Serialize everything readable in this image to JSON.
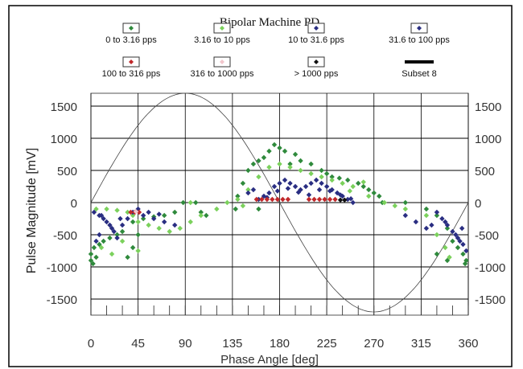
{
  "chart_data": {
    "type": "scatter",
    "title": "Bipolar Machine PD",
    "xlabel": "Phase Angle [deg]",
    "ylabel": "Pulse Magnitude [mV]",
    "xlim": [
      0,
      360
    ],
    "ylim": [
      -1750,
      1700
    ],
    "x_ticks": [
      0,
      45,
      90,
      135,
      180,
      225,
      270,
      315,
      360
    ],
    "x_tick_labels": [
      "0",
      "45",
      "90",
      "135",
      "180",
      "225",
      "270",
      "315",
      "360"
    ],
    "y_ticks": [
      1500,
      1000,
      500,
      0,
      -500,
      -1000,
      -1500
    ],
    "y_tick_labels_left": [
      "1500",
      "1000",
      "500",
      "0",
      "-500",
      "-1000",
      "-1500"
    ],
    "y_tick_labels_right": [
      "1500",
      "1000",
      "500",
      "0",
      "-500",
      "-1000",
      "-1500"
    ],
    "grid": true,
    "legend_position": "top",
    "reference_curve": {
      "type": "sine",
      "amplitude": 1700,
      "period_deg": 360
    },
    "legend": [
      {
        "label": "0 to 3.16 pps",
        "color": "#2f8a3c",
        "marker": "diamond"
      },
      {
        "label": "3.16 to 10 pps",
        "color": "#7bd15c",
        "marker": "diamond"
      },
      {
        "label": "10 to 31.6 pps",
        "color": "#2a2e82",
        "marker": "diamond"
      },
      {
        "label": "31.6 to 100 pps",
        "color": "#2a2e82",
        "marker": "diamond"
      },
      {
        "label": "100 to 316 pps",
        "color": "#c0282a",
        "marker": "diamond"
      },
      {
        "label": "316 to 1000 pps",
        "color": "#f2c6cc",
        "marker": "diamond"
      },
      {
        "label": "> 1000 pps",
        "color": "#111111",
        "marker": "diamond"
      },
      {
        "label": "Subset 8",
        "color": "#000000",
        "marker": "line"
      }
    ],
    "series": [
      {
        "name": "0 to 3.16 pps",
        "points": [
          [
            0,
            -900
          ],
          [
            2,
            -950
          ],
          [
            5,
            -850
          ],
          [
            0,
            -800
          ],
          [
            3,
            -700
          ],
          [
            8,
            -650
          ],
          [
            12,
            -600
          ],
          [
            18,
            -550
          ],
          [
            25,
            -500
          ],
          [
            30,
            -450
          ],
          [
            40,
            -300
          ],
          [
            50,
            -250
          ],
          [
            60,
            -220
          ],
          [
            70,
            -200
          ],
          [
            80,
            -150
          ],
          [
            88,
            0
          ],
          [
            100,
            0
          ],
          [
            105,
            -150
          ],
          [
            110,
            -200
          ],
          [
            138,
            -100
          ],
          [
            140,
            100
          ],
          [
            145,
            300
          ],
          [
            150,
            500
          ],
          [
            155,
            600
          ],
          [
            160,
            650
          ],
          [
            165,
            700
          ],
          [
            170,
            800
          ],
          [
            175,
            900
          ],
          [
            180,
            850
          ],
          [
            185,
            800
          ],
          [
            195,
            750
          ],
          [
            200,
            650
          ],
          [
            210,
            600
          ],
          [
            220,
            500
          ],
          [
            225,
            450
          ],
          [
            230,
            400
          ],
          [
            237,
            380
          ],
          [
            245,
            350
          ],
          [
            255,
            300
          ],
          [
            260,
            250
          ],
          [
            265,
            200
          ],
          [
            270,
            150
          ],
          [
            275,
            100
          ],
          [
            278,
            0
          ],
          [
            300,
            0
          ],
          [
            320,
            -100
          ],
          [
            330,
            -200
          ],
          [
            340,
            -400
          ],
          [
            345,
            -600
          ],
          [
            350,
            -700
          ],
          [
            355,
            -800
          ],
          [
            358,
            -900
          ],
          [
            357,
            -950
          ],
          [
            35,
            -850
          ],
          [
            40,
            -700
          ],
          [
            45,
            -500
          ],
          [
            330,
            -800
          ],
          [
            340,
            -900
          ],
          [
            190,
            600
          ],
          [
            160,
            -100
          ]
        ]
      },
      {
        "name": "3.16 to 10 pps",
        "points": [
          [
            5,
            -100
          ],
          [
            15,
            -100
          ],
          [
            25,
            -120
          ],
          [
            35,
            -150
          ],
          [
            40,
            -200
          ],
          [
            45,
            -300
          ],
          [
            55,
            -350
          ],
          [
            65,
            -400
          ],
          [
            75,
            -450
          ],
          [
            85,
            -400
          ],
          [
            95,
            -300
          ],
          [
            105,
            -200
          ],
          [
            120,
            -100
          ],
          [
            130,
            0
          ],
          [
            140,
            50
          ],
          [
            150,
            200
          ],
          [
            160,
            400
          ],
          [
            170,
            550
          ],
          [
            180,
            600
          ],
          [
            190,
            550
          ],
          [
            200,
            500
          ],
          [
            210,
            450
          ],
          [
            220,
            400
          ],
          [
            230,
            350
          ],
          [
            240,
            300
          ],
          [
            250,
            250
          ],
          [
            265,
            100
          ],
          [
            280,
            0
          ],
          [
            290,
            -50
          ],
          [
            300,
            -100
          ],
          [
            320,
            -200
          ],
          [
            330,
            -500
          ],
          [
            338,
            -700
          ],
          [
            342,
            -850
          ],
          [
            10,
            -700
          ],
          [
            20,
            -800
          ],
          [
            30,
            -600
          ],
          [
            45,
            -750
          ],
          [
            95,
            0
          ],
          [
            145,
            -50
          ],
          [
            247,
            180
          ],
          [
            260,
            320
          ]
        ]
      },
      {
        "name": "10 to 31.6 pps",
        "points": [
          [
            3,
            -150
          ],
          [
            10,
            -200
          ],
          [
            15,
            -300
          ],
          [
            20,
            -400
          ],
          [
            25,
            -550
          ],
          [
            30,
            -350
          ],
          [
            35,
            -250
          ],
          [
            40,
            -150
          ],
          [
            50,
            -200
          ],
          [
            60,
            -250
          ],
          [
            70,
            -300
          ],
          [
            80,
            -350
          ],
          [
            5,
            -600
          ],
          [
            8,
            -500
          ],
          [
            160,
            50
          ],
          [
            165,
            100
          ],
          [
            170,
            150
          ],
          [
            175,
            250
          ],
          [
            180,
            300
          ],
          [
            185,
            350
          ],
          [
            190,
            300
          ],
          [
            195,
            250
          ],
          [
            200,
            200
          ],
          [
            205,
            250
          ],
          [
            210,
            300
          ],
          [
            215,
            350
          ],
          [
            220,
            300
          ],
          [
            225,
            250
          ],
          [
            230,
            200
          ],
          [
            235,
            150
          ],
          [
            240,
            100
          ],
          [
            245,
            50
          ],
          [
            250,
            0
          ],
          [
            330,
            -150
          ],
          [
            335,
            -250
          ],
          [
            340,
            -350
          ],
          [
            345,
            -450
          ],
          [
            350,
            -550
          ],
          [
            355,
            -650
          ],
          [
            358,
            -750
          ],
          [
            300,
            -200
          ],
          [
            310,
            -300
          ],
          [
            320,
            -400
          ],
          [
            150,
            150
          ],
          [
            155,
            200
          ]
        ]
      },
      {
        "name": "31.6 to 100 pps",
        "points": [
          [
            8,
            -200
          ],
          [
            12,
            -250
          ],
          [
            18,
            -350
          ],
          [
            22,
            -450
          ],
          [
            28,
            -250
          ],
          [
            45,
            -100
          ],
          [
            55,
            -150
          ],
          [
            65,
            -180
          ],
          [
            168,
            80
          ],
          [
            178,
            180
          ],
          [
            188,
            220
          ],
          [
            198,
            160
          ],
          [
            208,
            120
          ],
          [
            218,
            200
          ],
          [
            228,
            180
          ],
          [
            238,
            120
          ],
          [
            248,
            60
          ],
          [
            338,
            -300
          ],
          [
            348,
            -500
          ],
          [
            352,
            -600
          ],
          [
            354,
            -400
          ],
          [
            325,
            -350
          ]
        ]
      },
      {
        "name": "100 to 316 pps",
        "points": [
          [
            38,
            -150
          ],
          [
            42,
            -150
          ],
          [
            46,
            -150
          ],
          [
            158,
            50
          ],
          [
            163,
            50
          ],
          [
            168,
            50
          ],
          [
            173,
            50
          ],
          [
            178,
            50
          ],
          [
            183,
            50
          ],
          [
            188,
            50
          ],
          [
            208,
            50
          ],
          [
            213,
            50
          ],
          [
            218,
            50
          ],
          [
            223,
            50
          ],
          [
            228,
            50
          ],
          [
            233,
            50
          ]
        ]
      },
      {
        "name": "316 to 1000 pps",
        "points": [
          [
            43,
            -140
          ]
        ]
      },
      {
        "name": "> 1000 pps",
        "points": [
          [
            238,
            40
          ],
          [
            242,
            40
          ]
        ]
      }
    ]
  }
}
